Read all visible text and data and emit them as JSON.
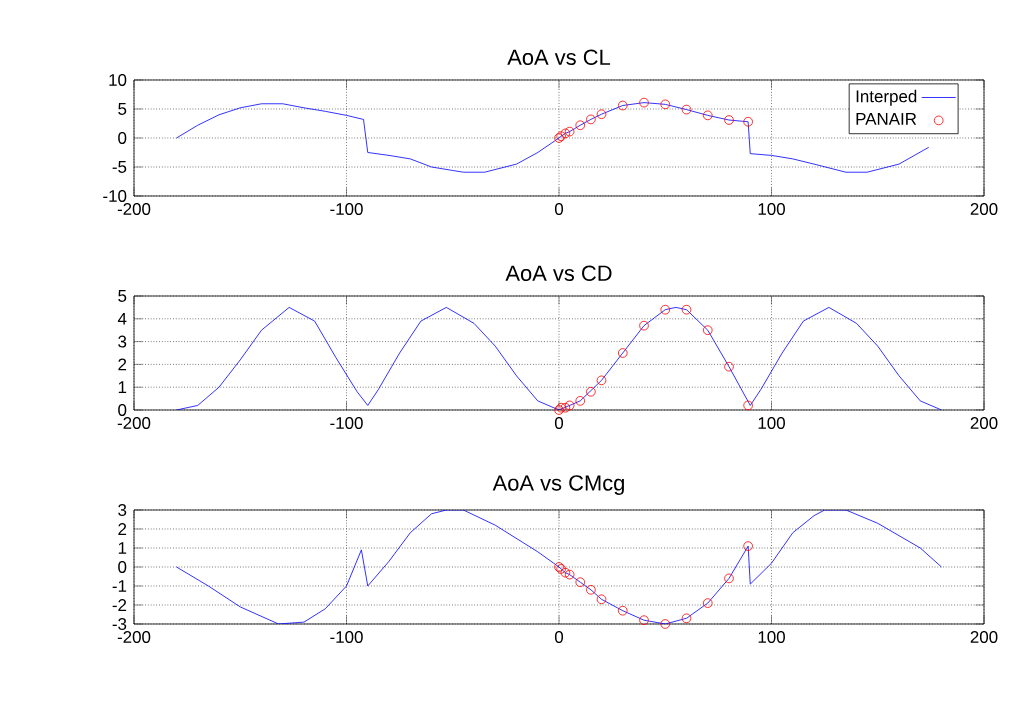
{
  "chart_data": [
    {
      "type": "line",
      "title": "AoA vs CL",
      "xlim": [
        -200,
        200
      ],
      "xticks": [
        -200,
        -100,
        0,
        100,
        200
      ],
      "ylim": [
        -10,
        10
      ],
      "yticks": [
        -10,
        -5,
        0,
        5,
        10
      ],
      "grid": true,
      "legend": "top right",
      "series": [
        {
          "name": "Interped",
          "color": "#0000ff",
          "x": [
            -180,
            -170,
            -160,
            -150,
            -140,
            -130,
            -120,
            -110,
            -100,
            -92,
            -90,
            -80,
            -70,
            -60,
            -50,
            -45,
            -35,
            -20,
            -10,
            0,
            1,
            3,
            5,
            10,
            15,
            20,
            30,
            40,
            50,
            60,
            70,
            80,
            89,
            90,
            100,
            110,
            120,
            135,
            145,
            160,
            174
          ],
          "values": [
            0,
            2.2,
            4,
            5.2,
            5.9,
            5.9,
            5.2,
            4.6,
            3.9,
            3.2,
            -2.5,
            -3,
            -3.6,
            -5,
            -5.6,
            -5.9,
            -5.9,
            -4.5,
            -2.5,
            0,
            0.3,
            0.8,
            1.1,
            2.2,
            3.2,
            4.1,
            5.6,
            6.1,
            5.8,
            4.9,
            3.9,
            3.1,
            2.8,
            -2.7,
            -3,
            -3.6,
            -4.5,
            -5.9,
            -5.9,
            -4.5,
            -1.6
          ]
        },
        {
          "name": "PANAIR",
          "type": "scatter",
          "marker": "circle",
          "color": "#ff0000",
          "x": [
            0,
            1,
            3,
            5,
            10,
            15,
            20,
            30,
            40,
            50,
            60,
            70,
            80,
            89
          ],
          "values": [
            0,
            0.3,
            0.8,
            1.1,
            2.2,
            3.2,
            4.1,
            5.6,
            6.1,
            5.8,
            4.9,
            3.9,
            3.1,
            2.8
          ]
        }
      ]
    },
    {
      "type": "line",
      "title": "AoA vs CD",
      "xlim": [
        -200,
        200
      ],
      "xticks": [
        -200,
        -100,
        0,
        100,
        200
      ],
      "ylim": [
        0,
        5
      ],
      "yticks": [
        0,
        1,
        2,
        3,
        4,
        5
      ],
      "grid": true,
      "series": [
        {
          "color": "#0000ff",
          "x": [
            -180,
            -170,
            -160,
            -150,
            -140,
            -127,
            -115,
            -105,
            -95,
            -90,
            -85,
            -75,
            -65,
            -53,
            -40,
            -30,
            -20,
            -10,
            0,
            10,
            20,
            30,
            40,
            50,
            55,
            60,
            70,
            80,
            90,
            95,
            105,
            115,
            127,
            140,
            150,
            160,
            170,
            180
          ],
          "values": [
            0,
            0.2,
            1,
            2.2,
            3.5,
            4.5,
            3.9,
            2.3,
            0.8,
            0.2,
            0.9,
            2.5,
            3.9,
            4.5,
            3.8,
            2.8,
            1.5,
            0.4,
            0,
            0.4,
            1.3,
            2.5,
            3.7,
            4.4,
            4.5,
            4.4,
            3.5,
            1.9,
            0.2,
            0.9,
            2.5,
            3.9,
            4.5,
            3.8,
            2.8,
            1.5,
            0.4,
            0
          ]
        },
        {
          "type": "scatter",
          "marker": "circle",
          "color": "#ff0000",
          "x": [
            0,
            1,
            3,
            5,
            10,
            15,
            20,
            30,
            40,
            50,
            60,
            70,
            80,
            89
          ],
          "values": [
            0,
            0.1,
            0.1,
            0.2,
            0.4,
            0.8,
            1.3,
            2.5,
            3.7,
            4.4,
            4.4,
            3.5,
            1.9,
            0.2
          ]
        }
      ]
    },
    {
      "type": "line",
      "title": "AoA vs CMcg",
      "xlim": [
        -200,
        200
      ],
      "xticks": [
        -200,
        -100,
        0,
        100,
        200
      ],
      "ylim": [
        -3,
        3
      ],
      "yticks": [
        -3,
        -2,
        -1,
        0,
        1,
        2,
        3
      ],
      "grid": true,
      "series": [
        {
          "color": "#0000ff",
          "x": [
            -180,
            -165,
            -150,
            -132,
            -120,
            -110,
            -100,
            -93,
            -90,
            -80,
            -70,
            -60,
            -53,
            -45,
            -30,
            -10,
            0,
            1,
            3,
            5,
            10,
            15,
            20,
            30,
            40,
            50,
            60,
            70,
            80,
            89,
            90,
            100,
            110,
            120,
            125,
            135,
            150,
            170,
            180
          ],
          "values": [
            0,
            -1,
            -2.1,
            -3,
            -2.9,
            -2.2,
            -1,
            0.9,
            -1,
            0.3,
            1.8,
            2.8,
            3,
            3,
            2.2,
            0.8,
            0,
            -0.1,
            -0.3,
            -0.4,
            -0.8,
            -1.2,
            -1.7,
            -2.3,
            -2.8,
            -3,
            -2.7,
            -1.9,
            -0.6,
            1.1,
            -0.9,
            0.2,
            1.8,
            2.7,
            3,
            3,
            2.3,
            1,
            0
          ]
        },
        {
          "type": "scatter",
          "marker": "circle",
          "color": "#ff0000",
          "x": [
            0,
            1,
            3,
            5,
            10,
            15,
            20,
            30,
            40,
            50,
            60,
            70,
            80,
            89
          ],
          "values": [
            0,
            -0.1,
            -0.3,
            -0.4,
            -0.8,
            -1.2,
            -1.7,
            -2.3,
            -2.8,
            -3,
            -2.7,
            -1.9,
            -0.6,
            1.1
          ]
        }
      ]
    }
  ]
}
